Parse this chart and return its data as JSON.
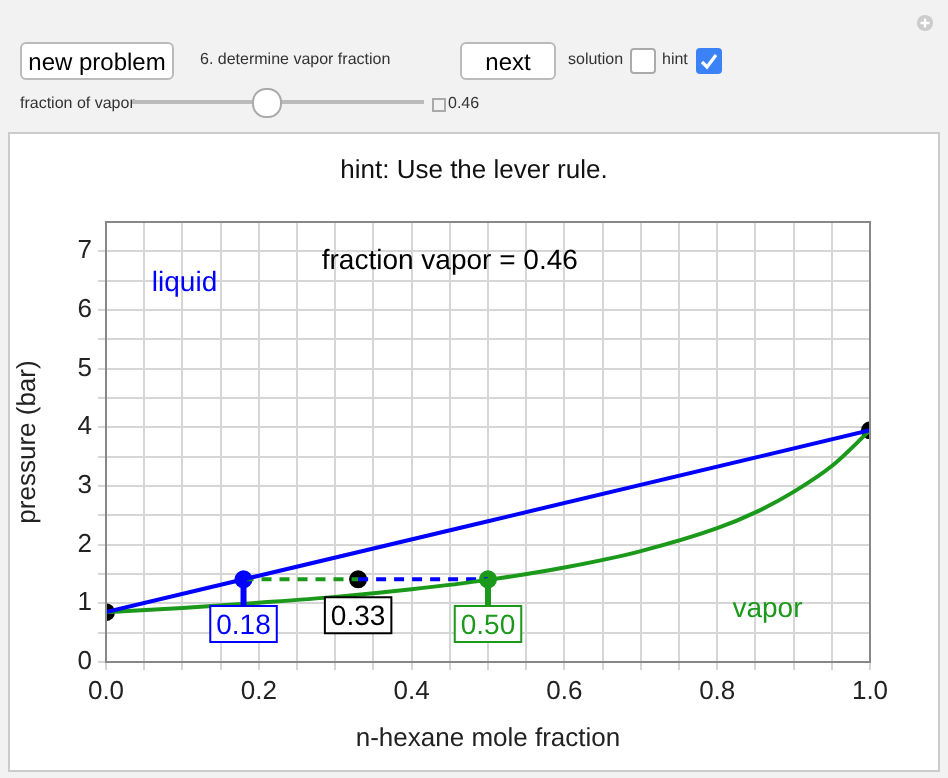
{
  "chart_data": {
    "type": "line",
    "title": "hint: Use the lever rule.",
    "xlabel": "n-hexane mole fraction",
    "ylabel": "pressure (bar)",
    "annotations": [
      "new problem",
      "6. determine vapor fraction",
      "next",
      "solution",
      "hint",
      "fraction of vapor",
      "0.46",
      "fraction vapor = 0.46",
      {
        "text": "0.18",
        "x": 0.18,
        "y": 1.41
      },
      {
        "text": "0.33",
        "x": 0.33,
        "y": 1.41
      },
      {
        "text": "0.50",
        "x": 0.5,
        "y": 1.41
      }
    ],
    "xlim": [
      0,
      1
    ],
    "ylim": [
      0,
      7.5
    ],
    "xticks": [
      {
        "value": 0,
        "label": "0.0"
      },
      {
        "value": 0.05,
        "label": null
      },
      {
        "value": 0.1,
        "label": null
      },
      {
        "value": 0.15,
        "label": null
      },
      0.2,
      {
        "value": 0.25,
        "label": null
      },
      {
        "value": 0.3,
        "label": null
      },
      {
        "value": 0.35,
        "label": null
      },
      0.4,
      {
        "value": 0.45,
        "label": null
      },
      {
        "value": 0.5,
        "label": null
      },
      {
        "value": 0.55,
        "label": null
      },
      0.6,
      {
        "value": 0.65,
        "label": null
      },
      {
        "value": 0.7,
        "label": null
      },
      {
        "value": 0.75,
        "label": null
      },
      0.8,
      {
        "value": 0.85,
        "label": null
      },
      {
        "value": 0.9,
        "label": null
      },
      {
        "value": 0.95,
        "label": null
      },
      {
        "value": 1,
        "label": "1.0"
      }
    ],
    "yticks": [
      0,
      {
        "value": 0.5,
        "label": null
      },
      1,
      {
        "value": 1.5,
        "label": null
      },
      2,
      {
        "value": 2.5,
        "label": null
      },
      3,
      {
        "value": 3.5,
        "label": null
      },
      4,
      {
        "value": 4.5,
        "label": null
      },
      5,
      {
        "value": 5.5,
        "label": null
      },
      6,
      {
        "value": 6.5,
        "label": null
      },
      7
    ],
    "grid": true,
    "series": [
      {
        "name": "liquid",
        "color": "#0000ff",
        "marker": "none",
        "x": [
          0,
          1
        ],
        "values": [
          0.85,
          3.95
        ]
      },
      {
        "name": "vapor",
        "color": "#1a991a",
        "marker": "none",
        "x": [
          0,
          0.1,
          0.2,
          0.3,
          0.4,
          0.5,
          0.6,
          0.7,
          0.8,
          0.85,
          0.9,
          0.95,
          1
        ],
        "values": [
          0.85,
          0.92,
          1.01,
          1.11,
          1.24,
          1.4,
          1.61,
          1.89,
          2.28,
          2.55,
          2.9,
          3.34,
          3.95
        ]
      },
      {
        "color": "#1a991a",
        "marker": "none",
        "line_style": "dashed",
        "x": [
          0.18,
          0.33
        ],
        "values": [
          1.41,
          1.41
        ]
      },
      {
        "color": "#0000ff",
        "marker": "none",
        "line_style": "dashed",
        "x": [
          0.33,
          0.5
        ],
        "values": [
          1.41,
          1.41
        ]
      },
      {
        "type": "scatter",
        "color": "#000000",
        "marker": "circle",
        "x": [
          0,
          0.33,
          1
        ],
        "values": [
          0.85,
          1.41,
          3.95
        ]
      },
      {
        "type": "scatter",
        "color": "#0000ff",
        "marker": "circle",
        "x": [
          0.18
        ],
        "values": [
          1.41
        ]
      },
      {
        "type": "scatter",
        "color": "#1a991a",
        "marker": "circle",
        "x": [
          0.5
        ],
        "values": [
          1.41
        ]
      }
    ]
  }
}
